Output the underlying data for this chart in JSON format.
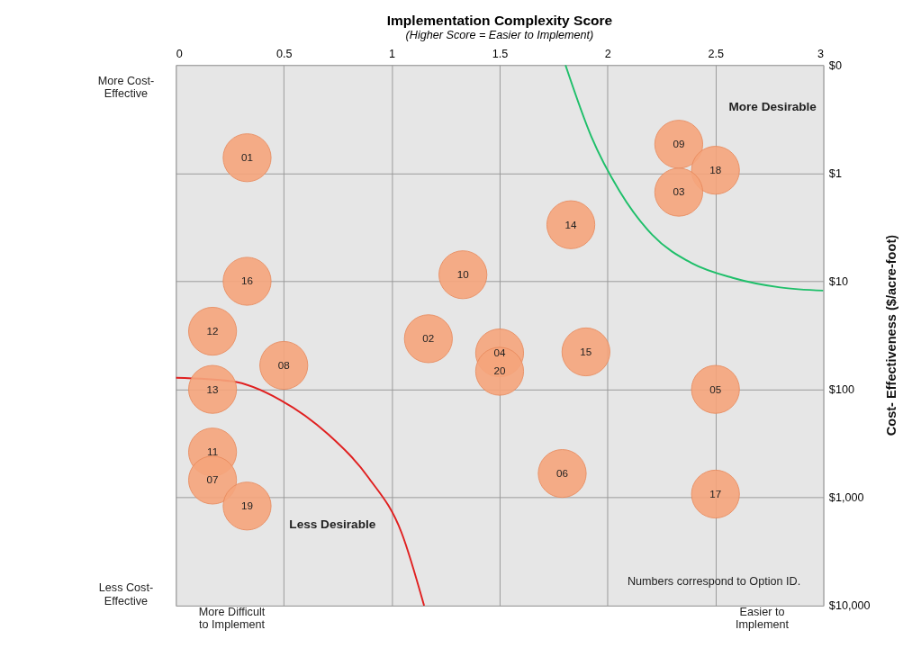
{
  "chart_data": {
    "type": "scatter",
    "title": "Implementation Complexity Score",
    "subtitle": "(Higher Score = Easier to Implement)",
    "ylabel": "Cost- Effectiveness ($/acre-foot)",
    "xlim": [
      0,
      3
    ],
    "xticks": [
      0,
      0.5,
      1,
      1.5,
      2,
      2.5,
      3
    ],
    "ylim": [
      10000,
      0.1
    ],
    "log": true,
    "yticks": [
      {
        "value": 0.1,
        "label": "$0"
      },
      {
        "value": 1,
        "label": "$1"
      },
      {
        "value": 10,
        "label": "$10"
      },
      {
        "value": 100,
        "label": "$100"
      },
      {
        "value": 1000,
        "label": "$1,000"
      },
      {
        "value": 10000,
        "label": "$10,000"
      }
    ],
    "grid": true,
    "marker": "circle",
    "annotations": [
      "More Cost-\nEffective",
      "Less Cost-\nEffective",
      "More Difficult\nto Implement",
      "Easier to\nImplement",
      "More Desirable",
      "Less Desirable",
      "Numbers correspond to Option ID."
    ],
    "series": [
      {
        "type": "line",
        "marker": "none",
        "color": "#1fbf6a",
        "x": [
          1.805,
          1.925,
          2.056,
          2.206,
          2.39,
          2.58,
          2.8,
          3.0
        ],
        "values": [
          0.1,
          0.46,
          1.47,
          3.7,
          6.8,
          9.3,
          11.4,
          12.2
        ]
      },
      {
        "type": "line",
        "marker": "none",
        "color": "#e02020",
        "x": [
          0,
          0.258,
          0.483,
          0.708,
          0.895,
          1.045,
          1.15
        ],
        "values": [
          78,
          84,
          125,
          263,
          665,
          2100,
          10000
        ]
      },
      {
        "name": "01",
        "color": "#f6a57c",
        "x": [
          0.33
        ],
        "values": [
          0.72
        ]
      },
      {
        "name": "09",
        "color": "#f6a57c",
        "x": [
          2.33
        ],
        "values": [
          0.54
        ]
      },
      {
        "name": "18",
        "color": "#f6a57c",
        "x": [
          2.5
        ],
        "values": [
          0.94
        ]
      },
      {
        "name": "03",
        "color": "#f6a57c",
        "x": [
          2.33
        ],
        "values": [
          1.5
        ]
      },
      {
        "name": "14",
        "color": "#f6a57c",
        "x": [
          1.83
        ],
        "values": [
          3.0
        ]
      },
      {
        "name": "10",
        "color": "#f6a57c",
        "x": [
          1.33
        ],
        "values": [
          8.7
        ]
      },
      {
        "name": "16",
        "color": "#f6a57c",
        "x": [
          0.33
        ],
        "values": [
          10
        ]
      },
      {
        "name": "12",
        "color": "#f6a57c",
        "x": [
          0.17
        ],
        "values": [
          29
        ]
      },
      {
        "name": "02",
        "color": "#f6a57c",
        "x": [
          1.17
        ],
        "values": [
          34
        ]
      },
      {
        "name": "04",
        "color": "#f6a57c",
        "x": [
          1.5
        ],
        "values": [
          46
        ]
      },
      {
        "name": "20",
        "color": "#f6a57c",
        "x": [
          1.5
        ],
        "values": [
          68
        ]
      },
      {
        "name": "15",
        "color": "#f6a57c",
        "x": [
          1.9
        ],
        "values": [
          45
        ]
      },
      {
        "name": "08",
        "color": "#f6a57c",
        "x": [
          0.5
        ],
        "values": [
          60
        ]
      },
      {
        "name": "13",
        "color": "#f6a57c",
        "x": [
          0.17
        ],
        "values": [
          100
        ]
      },
      {
        "name": "05",
        "color": "#f6a57c",
        "x": [
          2.5
        ],
        "values": [
          100
        ]
      },
      {
        "name": "06",
        "color": "#f6a57c",
        "x": [
          1.79
        ],
        "values": [
          600
        ]
      },
      {
        "name": "11",
        "color": "#f6a57c",
        "x": [
          0.17
        ],
        "values": [
          380
        ]
      },
      {
        "name": "07",
        "color": "#f6a57c",
        "x": [
          0.17
        ],
        "values": [
          690
        ]
      },
      {
        "name": "19",
        "color": "#f6a57c",
        "x": [
          0.33
        ],
        "values": [
          1200
        ]
      },
      {
        "name": "17",
        "color": "#f6a57c",
        "x": [
          2.5
        ],
        "values": [
          930
        ]
      }
    ]
  }
}
